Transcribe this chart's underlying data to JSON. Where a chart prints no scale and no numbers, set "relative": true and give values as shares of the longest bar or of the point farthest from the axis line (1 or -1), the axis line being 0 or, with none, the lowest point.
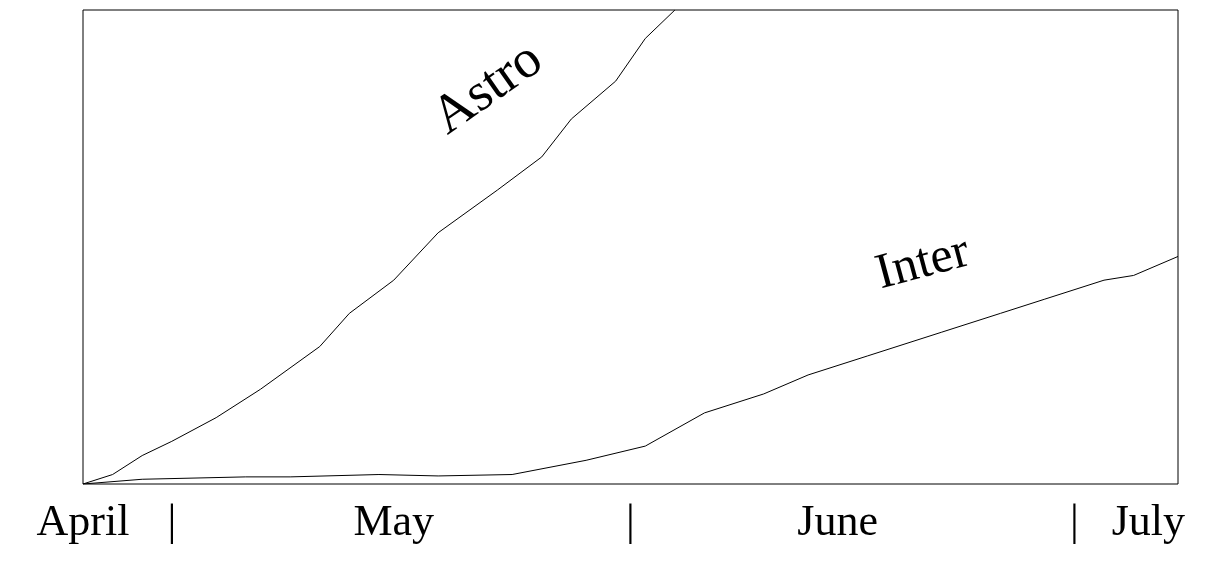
{
  "chart_data": {
    "type": "line",
    "relative": true,
    "xlim": [
      "--04-25",
      "--07-08"
    ],
    "xticks": [
      {
        "value": "--04-25",
        "label": "April"
      },
      {
        "value": "--05-01",
        "label": "|"
      },
      {
        "value": "--05-16",
        "label": "May"
      },
      {
        "value": "--06-01",
        "label": "|"
      },
      {
        "value": "--06-15",
        "label": "June"
      },
      {
        "value": "--07-01",
        "label": "|"
      },
      {
        "value": "--07-06",
        "label": "July"
      }
    ],
    "series": [
      {
        "name": "Astro",
        "color": "#000000",
        "x": [
          "--04-25",
          "--04-27",
          "--04-29",
          "--05-01",
          "--05-04",
          "--05-07",
          "--05-11",
          "--05-13",
          "--05-16",
          "--05-19",
          "--05-23",
          "--05-26",
          "--05-28",
          "--05-31",
          "--06-02",
          "--06-04"
        ],
        "values": [
          0,
          0.02,
          0.06,
          0.09,
          0.14,
          0.2,
          0.29,
          0.36,
          0.43,
          0.53,
          0.62,
          0.69,
          0.77,
          0.85,
          0.94,
          1
        ]
      },
      {
        "name": "Inter",
        "color": "#000000",
        "x": [
          "--04-25",
          "--04-29",
          "--05-06",
          "--05-09",
          "--05-15",
          "--05-19",
          "--05-24",
          "--05-29",
          "--06-02",
          "--06-06",
          "--06-10",
          "--06-13",
          "--06-17",
          "--06-22",
          "--06-26",
          "--06-29",
          "--07-03",
          "--07-05",
          "--07-08"
        ],
        "values": [
          0,
          0.01,
          0.015,
          0.015,
          0.02,
          0.017,
          0.02,
          0.05,
          0.08,
          0.15,
          0.19,
          0.23,
          0.27,
          0.32,
          0.36,
          0.39,
          0.43,
          0.44,
          0.48
        ]
      }
    ]
  }
}
